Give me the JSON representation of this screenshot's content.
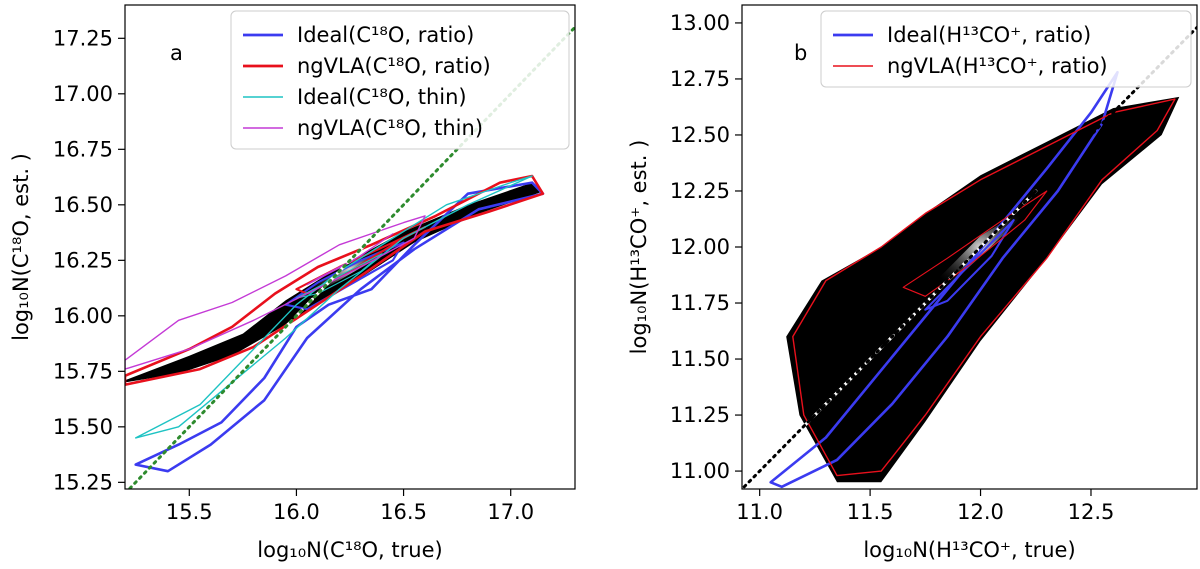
{
  "chart_data": [
    {
      "type": "scatter",
      "panel_label": "a",
      "title": "",
      "xlabel": "log₁₀N(C¹⁸O, true)",
      "ylabel": "log₁₀N(C¹⁸O, est. )",
      "xlim": [
        15.2,
        17.3
      ],
      "ylim": [
        15.22,
        17.4
      ],
      "xticks": [
        15.5,
        16.0,
        16.5,
        17.0
      ],
      "xtick_labels": [
        "15.5",
        "16.0",
        "16.5",
        "17.0"
      ],
      "yticks": [
        15.25,
        15.5,
        15.75,
        16.0,
        16.25,
        16.5,
        16.75,
        17.0,
        17.25
      ],
      "ytick_labels": [
        "15.25",
        "15.50",
        "15.75",
        "16.00",
        "16.25",
        "16.50",
        "16.75",
        "17.00",
        "17.25"
      ],
      "legend_position": "top-right",
      "series": [
        {
          "name": "Ideal(C¹⁸O, ratio)",
          "color": "#3b3bf0",
          "style": "contour-thick",
          "outer": [
            [
              15.25,
              15.33
            ],
            [
              15.45,
              15.42
            ],
            [
              15.65,
              15.52
            ],
            [
              15.85,
              15.72
            ],
            [
              16.0,
              15.95
            ],
            [
              16.15,
              16.05
            ],
            [
              16.35,
              16.12
            ],
            [
              16.55,
              16.32
            ],
            [
              16.8,
              16.55
            ],
            [
              17.1,
              16.6
            ],
            [
              17.15,
              16.55
            ],
            [
              16.85,
              16.48
            ],
            [
              16.55,
              16.3
            ],
            [
              16.3,
              16.12
            ],
            [
              16.05,
              15.9
            ],
            [
              15.85,
              15.62
            ],
            [
              15.6,
              15.42
            ],
            [
              15.4,
              15.3
            ]
          ],
          "inner": [
            [
              15.95,
              16.05
            ],
            [
              16.1,
              16.15
            ],
            [
              16.3,
              16.25
            ],
            [
              16.5,
              16.33
            ],
            [
              16.45,
              16.25
            ],
            [
              16.25,
              16.14
            ],
            [
              16.05,
              16.03
            ]
          ]
        },
        {
          "name": "ngVLA(C¹⁸O, ratio)",
          "color": "#e8101c",
          "style": "contour-thick",
          "outer": [
            [
              15.2,
              15.73
            ],
            [
              15.5,
              15.85
            ],
            [
              15.7,
              15.95
            ],
            [
              15.9,
              16.1
            ],
            [
              16.1,
              16.22
            ],
            [
              16.35,
              16.32
            ],
            [
              16.65,
              16.45
            ],
            [
              16.95,
              16.6
            ],
            [
              17.1,
              16.63
            ],
            [
              17.15,
              16.55
            ],
            [
              16.9,
              16.47
            ],
            [
              16.6,
              16.38
            ],
            [
              16.3,
              16.18
            ],
            [
              16.05,
              16.02
            ],
            [
              15.8,
              15.86
            ],
            [
              15.55,
              15.76
            ],
            [
              15.2,
              15.69
            ]
          ],
          "inner": [
            [
              16.0,
              16.12
            ],
            [
              16.2,
              16.22
            ],
            [
              16.45,
              16.33
            ],
            [
              16.6,
              16.4
            ],
            [
              16.5,
              16.35
            ],
            [
              16.25,
              16.2
            ],
            [
              16.05,
              16.1
            ]
          ]
        },
        {
          "name": "Ideal(C¹⁸O, thin)",
          "color": "#1ec3c3",
          "style": "contour-thin",
          "outer": [
            [
              15.25,
              15.45
            ],
            [
              15.55,
              15.6
            ],
            [
              15.8,
              15.85
            ],
            [
              16.0,
              16.05
            ],
            [
              16.2,
              16.2
            ],
            [
              16.45,
              16.35
            ],
            [
              16.7,
              16.5
            ],
            [
              17.0,
              16.6
            ],
            [
              17.1,
              16.63
            ],
            [
              16.8,
              16.5
            ],
            [
              16.5,
              16.35
            ],
            [
              16.2,
              16.12
            ],
            [
              15.95,
              15.9
            ],
            [
              15.7,
              15.7
            ],
            [
              15.45,
              15.5
            ]
          ],
          "inner": [
            [
              16.0,
              16.08
            ],
            [
              16.2,
              16.18
            ],
            [
              16.4,
              16.28
            ],
            [
              16.3,
              16.2
            ],
            [
              16.1,
              16.1
            ]
          ]
        },
        {
          "name": "ngVLA(C¹⁸O, thin)",
          "color": "#c43ad6",
          "style": "contour-thin",
          "outer": [
            [
              15.2,
              15.8
            ],
            [
              15.45,
              15.98
            ],
            [
              15.7,
              16.06
            ],
            [
              15.95,
              16.18
            ],
            [
              16.2,
              16.32
            ],
            [
              16.5,
              16.42
            ],
            [
              16.6,
              16.45
            ],
            [
              16.55,
              16.35
            ],
            [
              16.3,
              16.22
            ],
            [
              16.05,
              16.1
            ],
            [
              15.8,
              15.98
            ],
            [
              15.5,
              15.85
            ],
            [
              15.2,
              15.76
            ]
          ],
          "inner": [
            [
              16.05,
              16.14
            ],
            [
              16.25,
              16.24
            ],
            [
              16.45,
              16.37
            ],
            [
              16.3,
              16.27
            ],
            [
              16.1,
              16.17
            ]
          ]
        },
        {
          "name": "density (grayscale)",
          "color": "#000000",
          "style": "density",
          "outer": [
            [
              15.2,
              15.71
            ],
            [
              15.5,
              15.82
            ],
            [
              15.75,
              15.92
            ],
            [
              15.95,
              16.07
            ],
            [
              16.2,
              16.22
            ],
            [
              16.5,
              16.38
            ],
            [
              16.8,
              16.5
            ],
            [
              17.1,
              16.6
            ],
            [
              17.15,
              16.56
            ],
            [
              16.85,
              16.46
            ],
            [
              16.55,
              16.33
            ],
            [
              16.25,
              16.14
            ],
            [
              15.95,
              15.96
            ],
            [
              15.7,
              15.82
            ],
            [
              15.45,
              15.74
            ],
            [
              15.2,
              15.7
            ]
          ],
          "core": [
            [
              16.0,
              16.1
            ],
            [
              16.2,
              16.2
            ],
            [
              16.5,
              16.35
            ],
            [
              16.45,
              16.3
            ],
            [
              16.2,
              16.16
            ],
            [
              16.02,
              16.07
            ]
          ]
        }
      ],
      "reference_lines": [
        {
          "name": "one-to-one",
          "color": "#ffffff",
          "style": "dashed",
          "points": [
            [
              15.9,
              15.9
            ],
            [
              16.45,
              16.45
            ]
          ]
        },
        {
          "name": "one-to-one dotted",
          "color": "#2e8b2e",
          "style": "dotted",
          "points": [
            [
              15.2,
              15.2
            ],
            [
              17.3,
              17.3
            ]
          ]
        }
      ]
    },
    {
      "type": "scatter",
      "panel_label": "b",
      "title": "",
      "xlabel": "log₁₀N(H¹³CO⁺, true)",
      "ylabel": "log₁₀N(H¹³CO⁺, est. )",
      "xlim": [
        10.92,
        12.98
      ],
      "ylim": [
        10.92,
        13.08
      ],
      "xticks": [
        11.0,
        11.5,
        12.0,
        12.5
      ],
      "xtick_labels": [
        "11.0",
        "11.5",
        "12.0",
        "12.5"
      ],
      "yticks": [
        11.0,
        11.25,
        11.5,
        11.75,
        12.0,
        12.25,
        12.5,
        12.75,
        13.0
      ],
      "ytick_labels": [
        "11.00",
        "11.25",
        "11.50",
        "11.75",
        "12.00",
        "12.25",
        "12.50",
        "12.75",
        "13.00"
      ],
      "legend_position": "top-right",
      "series": [
        {
          "name": "Ideal(H¹³CO⁺, ratio)",
          "color": "#3b3bf0",
          "style": "contour-thick",
          "outer": [
            [
              11.05,
              10.95
            ],
            [
              11.3,
              11.15
            ],
            [
              11.55,
              11.45
            ],
            [
              11.8,
              11.75
            ],
            [
              12.05,
              12.05
            ],
            [
              12.3,
              12.35
            ],
            [
              12.5,
              12.6
            ],
            [
              12.62,
              12.78
            ],
            [
              12.55,
              12.55
            ],
            [
              12.35,
              12.25
            ],
            [
              12.1,
              11.95
            ],
            [
              11.85,
              11.6
            ],
            [
              11.6,
              11.3
            ],
            [
              11.35,
              11.05
            ],
            [
              11.1,
              10.93
            ]
          ],
          "inner": [
            [
              11.75,
              11.72
            ],
            [
              11.95,
              11.92
            ],
            [
              12.15,
              12.12
            ],
            [
              12.05,
              11.96
            ],
            [
              11.85,
              11.76
            ]
          ]
        },
        {
          "name": "ngVLA(H¹³CO⁺, ratio)",
          "color": "#e8101c",
          "style": "contour-thin",
          "outer": [
            [
              11.35,
              10.98
            ],
            [
              11.2,
              11.25
            ],
            [
              11.15,
              11.6
            ],
            [
              11.3,
              11.85
            ],
            [
              11.55,
              12.0
            ],
            [
              11.75,
              12.15
            ],
            [
              12.0,
              12.3
            ],
            [
              12.3,
              12.45
            ],
            [
              12.6,
              12.6
            ],
            [
              12.88,
              12.66
            ],
            [
              12.8,
              12.52
            ],
            [
              12.55,
              12.3
            ],
            [
              12.3,
              11.95
            ],
            [
              12.0,
              11.6
            ],
            [
              11.75,
              11.25
            ],
            [
              11.55,
              11.0
            ]
          ],
          "inner": [
            [
              11.65,
              11.82
            ],
            [
              11.85,
              11.95
            ],
            [
              12.1,
              12.12
            ],
            [
              12.3,
              12.25
            ],
            [
              12.2,
              12.12
            ],
            [
              11.95,
              11.92
            ],
            [
              11.75,
              11.78
            ]
          ]
        },
        {
          "name": "density (grayscale)",
          "color": "#000000",
          "style": "density",
          "outer": [
            [
              11.35,
              10.95
            ],
            [
              11.18,
              11.25
            ],
            [
              11.12,
              11.6
            ],
            [
              11.28,
              11.85
            ],
            [
              11.55,
              12.0
            ],
            [
              11.75,
              12.15
            ],
            [
              12.0,
              12.32
            ],
            [
              12.3,
              12.47
            ],
            [
              12.6,
              12.62
            ],
            [
              12.9,
              12.67
            ],
            [
              12.82,
              12.5
            ],
            [
              12.55,
              12.28
            ],
            [
              12.3,
              11.95
            ],
            [
              12.0,
              11.58
            ],
            [
              11.75,
              11.22
            ],
            [
              11.55,
              10.95
            ]
          ],
          "core": [
            [
              11.75,
              11.8
            ],
            [
              12.0,
              12.05
            ],
            [
              12.25,
              12.2
            ],
            [
              12.1,
              12.05
            ],
            [
              11.85,
              11.82
            ]
          ]
        }
      ],
      "reference_lines": [
        {
          "name": "one-to-one",
          "color": "#ffffff",
          "style": "dashed",
          "points": [
            [
              11.1,
              11.1
            ],
            [
              12.25,
              12.25
            ]
          ]
        },
        {
          "name": "one-to-one dotted",
          "color": "#000000",
          "style": "dotted",
          "points": [
            [
              10.93,
              10.93
            ],
            [
              12.98,
              12.98
            ]
          ]
        }
      ]
    }
  ]
}
